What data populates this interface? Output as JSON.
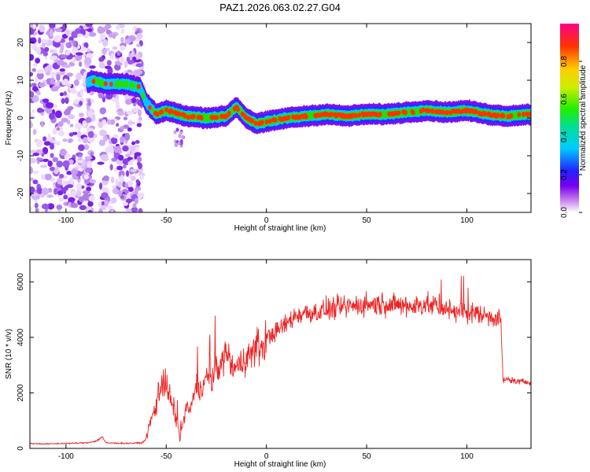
{
  "title": "PAZ1.2026.063.02.27.G04",
  "chart_data": [
    {
      "type": "heatmap",
      "xlabel": "Height of straight line (km)",
      "ylabel": "Frequency (Hz)",
      "xlim": [
        -118,
        132
      ],
      "ylim": [
        -25,
        25
      ],
      "xticks": [
        -100,
        -50,
        0,
        50,
        100
      ],
      "yticks": [
        -20,
        -10,
        0,
        10,
        20
      ],
      "colorbar": {
        "label": "Normalized spectral amplitude",
        "range": [
          0,
          1
        ],
        "ticks": [
          "0.0",
          "0.2",
          "0.4",
          "0.6",
          "0.8"
        ],
        "tick_values": [
          0.0,
          0.2,
          0.4,
          0.6,
          0.8
        ]
      },
      "ridge": {
        "description": "dominant frequency track vs height",
        "x": [
          -118,
          -90,
          -87,
          -80,
          -70,
          -63,
          -60,
          -55,
          -50,
          -40,
          -30,
          -20,
          -15,
          -10,
          -5,
          0,
          10,
          20,
          30,
          40,
          50,
          60,
          70,
          80,
          90,
          100,
          110,
          120,
          132
        ],
        "y": [
          9,
          9,
          10,
          9,
          9,
          8,
          4,
          1,
          2,
          0.5,
          0,
          0.5,
          3,
          0,
          -1.5,
          -1,
          0,
          0.5,
          1,
          0.5,
          1,
          1,
          1.5,
          2,
          1.5,
          2,
          1,
          0.5,
          1
        ]
      }
    },
    {
      "type": "line",
      "xlabel": "Height of straight line (km)",
      "ylabel": "SNR (10 * v/v)",
      "xlim": [
        -118,
        132
      ],
      "ylim": [
        0,
        6800
      ],
      "xticks": [
        -100,
        -50,
        0,
        50,
        100
      ],
      "yticks": [
        0,
        2000,
        4000,
        6000
      ],
      "series": [
        {
          "name": "SNR",
          "color": "#ee2222",
          "x": [
            -118,
            -110,
            -100,
            -90,
            -85,
            -82,
            -80,
            -70,
            -62,
            -60,
            -58,
            -55,
            -52,
            -50,
            -48,
            -45,
            -43,
            -40,
            -38,
            -35,
            -32,
            -30,
            -27,
            -25,
            -22,
            -20,
            -17,
            -15,
            -12,
            -10,
            -8,
            -5,
            -2,
            0,
            5,
            10,
            15,
            20,
            25,
            30,
            40,
            50,
            60,
            70,
            80,
            90,
            100,
            110,
            115,
            117,
            118,
            120,
            125,
            132
          ],
          "values": [
            180,
            160,
            180,
            200,
            260,
            420,
            200,
            180,
            200,
            350,
            900,
            1600,
            2600,
            2200,
            1800,
            1100,
            350,
            1500,
            1300,
            2300,
            2100,
            2600,
            2400,
            2900,
            3100,
            3500,
            2900,
            2900,
            3100,
            3400,
            3300,
            3700,
            3600,
            4000,
            4200,
            4500,
            4800,
            4900,
            4900,
            5000,
            5100,
            5200,
            5200,
            5100,
            5200,
            5000,
            4900,
            4800,
            4700,
            4700,
            2400,
            2500,
            2400,
            2400
          ]
        }
      ]
    }
  ]
}
